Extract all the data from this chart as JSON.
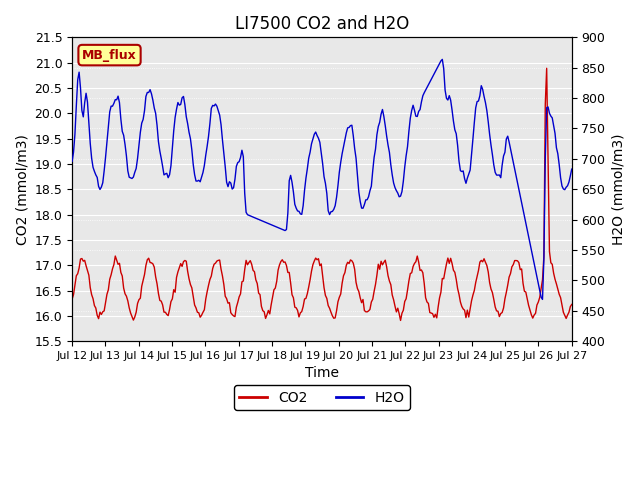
{
  "title": "LI7500 CO2 and H2O",
  "xlabel": "Time",
  "ylabel_left": "CO2 (mmol/m3)",
  "ylabel_right": "H2O (mmol/m3)",
  "ylim_left": [
    15.5,
    21.5
  ],
  "ylim_right": [
    400,
    900
  ],
  "yticks_left": [
    15.5,
    16.0,
    16.5,
    17.0,
    17.5,
    18.0,
    18.5,
    19.0,
    19.5,
    20.0,
    20.5,
    21.0,
    21.5
  ],
  "yticks_right": [
    400,
    450,
    500,
    550,
    600,
    650,
    700,
    750,
    800,
    850,
    900
  ],
  "xtick_labels": [
    "Jul 12",
    "Jul 13",
    "Jul 14",
    "Jul 15",
    "Jul 16",
    "Jul 17",
    "Jul 18",
    "Jul 19",
    "Jul 20",
    "Jul 21",
    "Jul 22",
    "Jul 23",
    "Jul 24",
    "Jul 25",
    "Jul 26",
    "Jul 27"
  ],
  "co2_color": "#cc0000",
  "h2o_color": "#0000cc",
  "bg_color": "#e8e8e8",
  "fig_bg_color": "#ffffff",
  "annotation_text": "MB_flux",
  "annotation_bg": "#ffff99",
  "annotation_border": "#aa0000",
  "legend_co2": "CO2",
  "legend_h2o": "H2O",
  "n_points": 360
}
